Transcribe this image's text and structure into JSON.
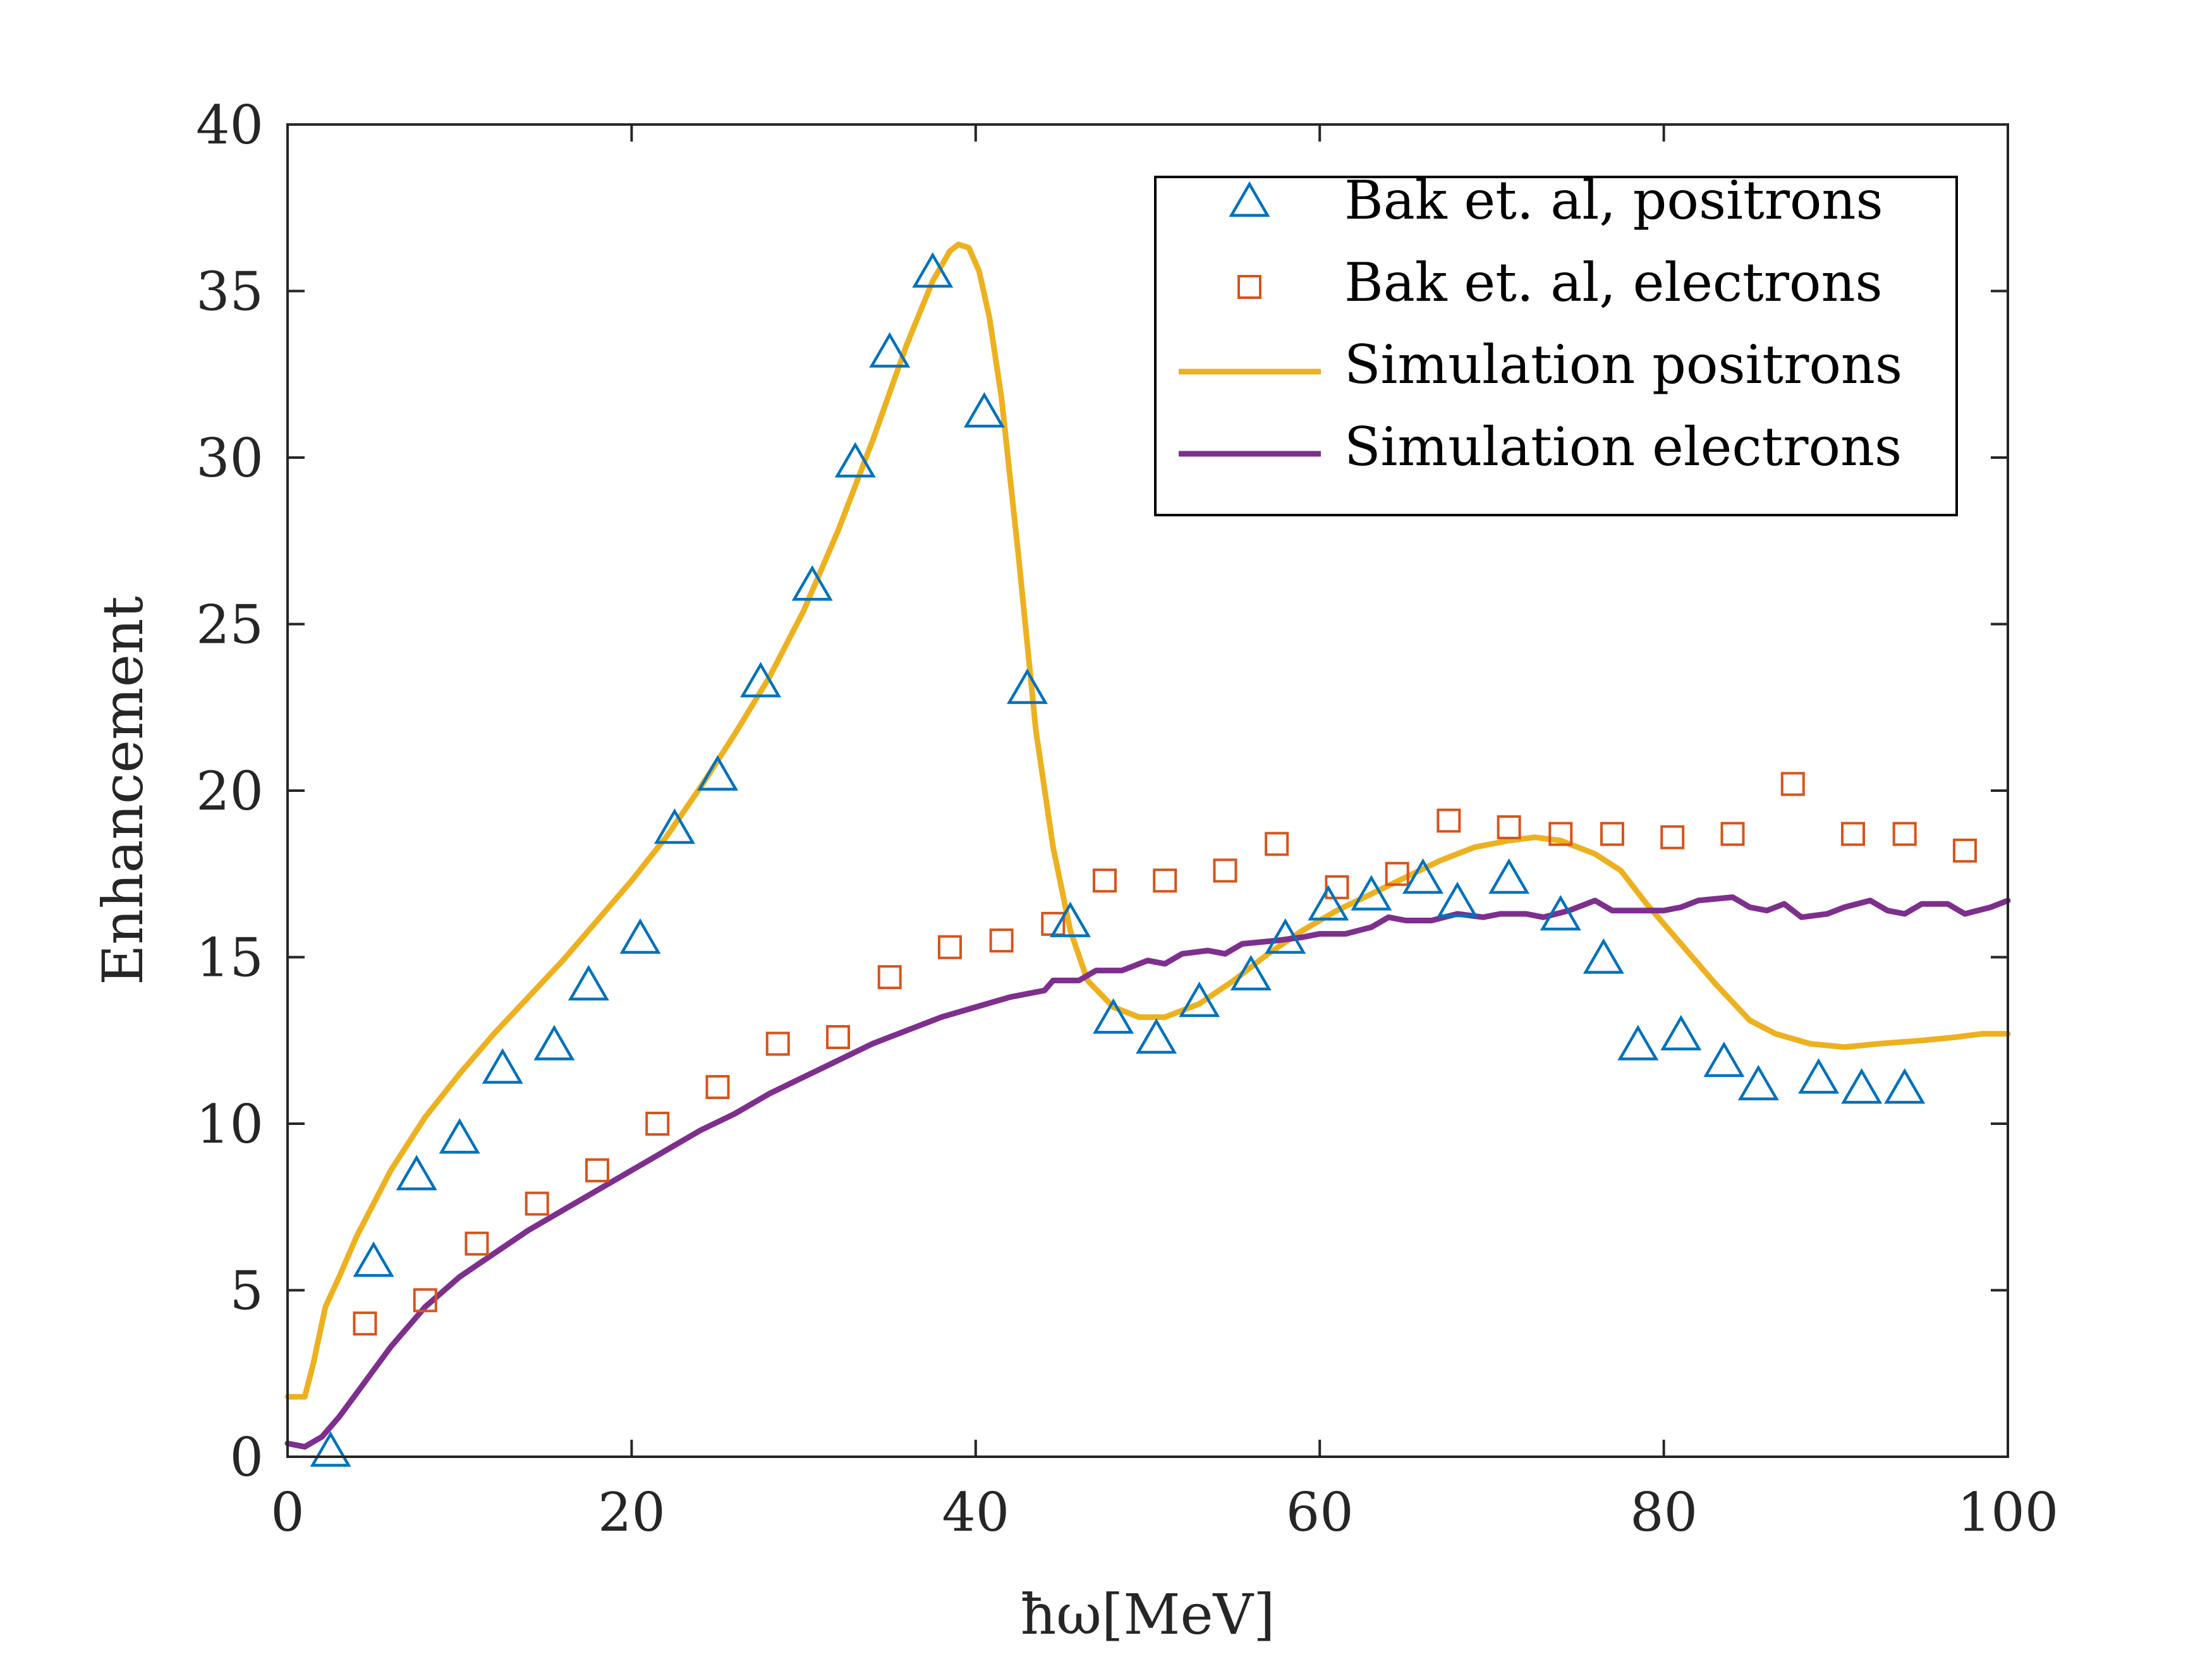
{
  "chart_data": {
    "type": "line",
    "title": "",
    "xlabel": "ħω[MeV]",
    "ylabel": "Enhancement",
    "xlim": [
      0,
      100
    ],
    "ylim": [
      0,
      40
    ],
    "xticks": [
      0,
      20,
      40,
      60,
      80,
      100
    ],
    "yticks": [
      0,
      5,
      10,
      15,
      20,
      25,
      30,
      35,
      40
    ],
    "grid": false,
    "legend_position": "top-right",
    "series": [
      {
        "name": "Bak et. al, positrons",
        "kind": "scatter",
        "marker": "triangle",
        "color": "#0072BD",
        "points": [
          [
            2.5,
            0.1
          ],
          [
            5,
            5.8
          ],
          [
            7.5,
            8.4
          ],
          [
            10,
            9.5
          ],
          [
            12.5,
            11.6
          ],
          [
            15.5,
            12.3
          ],
          [
            17.5,
            14.1
          ],
          [
            20.5,
            15.5
          ],
          [
            22.5,
            18.8
          ],
          [
            25,
            20.4
          ],
          [
            27.5,
            23.2
          ],
          [
            30.5,
            26.1
          ],
          [
            33,
            29.8
          ],
          [
            35,
            33.1
          ],
          [
            37.5,
            35.5
          ],
          [
            40.5,
            31.3
          ],
          [
            43,
            23
          ],
          [
            45.5,
            16
          ],
          [
            48,
            13.1
          ],
          [
            50.5,
            12.5
          ],
          [
            53,
            13.6
          ],
          [
            56,
            14.4
          ],
          [
            58,
            15.5
          ],
          [
            60.5,
            16.5
          ],
          [
            63,
            16.8
          ],
          [
            66,
            17.3
          ],
          [
            68,
            16.6
          ],
          [
            71,
            17.3
          ],
          [
            74,
            16.2
          ],
          [
            76.5,
            14.9
          ],
          [
            78.5,
            12.3
          ],
          [
            81,
            12.6
          ],
          [
            83.5,
            11.8
          ],
          [
            85.5,
            11.1
          ],
          [
            89,
            11.3
          ],
          [
            91.5,
            11
          ],
          [
            94,
            11
          ]
        ]
      },
      {
        "name": "Bak et. al, electrons",
        "kind": "scatter",
        "marker": "square",
        "color": "#D95319",
        "points": [
          [
            4.5,
            4
          ],
          [
            8,
            4.7
          ],
          [
            11,
            6.4
          ],
          [
            14.5,
            7.6
          ],
          [
            18,
            8.6
          ],
          [
            21.5,
            10
          ],
          [
            25,
            11.1
          ],
          [
            28.5,
            12.4
          ],
          [
            32,
            12.6
          ],
          [
            35,
            14.4
          ],
          [
            38.5,
            15.3
          ],
          [
            41.5,
            15.5
          ],
          [
            44.5,
            16
          ],
          [
            47.5,
            17.3
          ],
          [
            51,
            17.3
          ],
          [
            54.5,
            17.6
          ],
          [
            57.5,
            18.4
          ],
          [
            61,
            17.1
          ],
          [
            64.5,
            17.5
          ],
          [
            67.5,
            19.1
          ],
          [
            71,
            18.9
          ],
          [
            74,
            18.7
          ],
          [
            77,
            18.7
          ],
          [
            80.5,
            18.6
          ],
          [
            84,
            18.7
          ],
          [
            87.5,
            20.2
          ],
          [
            91,
            18.7
          ],
          [
            94,
            18.7
          ],
          [
            97.5,
            18.2
          ]
        ]
      },
      {
        "name": "Simulation positrons",
        "kind": "line",
        "color": "#EDB120",
        "points": [
          [
            0,
            1.8
          ],
          [
            1,
            1.8
          ],
          [
            1.5,
            2.8
          ],
          [
            2.2,
            4.5
          ],
          [
            3,
            5.4
          ],
          [
            4,
            6.6
          ],
          [
            6,
            8.6
          ],
          [
            8,
            10.2
          ],
          [
            10,
            11.5
          ],
          [
            12,
            12.7
          ],
          [
            14,
            13.8
          ],
          [
            16,
            14.9
          ],
          [
            18,
            16.1
          ],
          [
            20,
            17.3
          ],
          [
            22,
            18.6
          ],
          [
            24,
            20.1
          ],
          [
            26,
            21.7
          ],
          [
            28,
            23.4
          ],
          [
            30,
            25.4
          ],
          [
            32,
            27.8
          ],
          [
            34,
            30.5
          ],
          [
            36,
            33.4
          ],
          [
            37.5,
            35.3
          ],
          [
            38.5,
            36.2
          ],
          [
            39,
            36.4
          ],
          [
            39.6,
            36.3
          ],
          [
            40.2,
            35.6
          ],
          [
            40.8,
            34.2
          ],
          [
            41.5,
            31.8
          ],
          [
            42.5,
            27
          ],
          [
            43.5,
            21.8
          ],
          [
            44.5,
            18.3
          ],
          [
            45.5,
            15.8
          ],
          [
            46.5,
            14.3
          ],
          [
            48,
            13.5
          ],
          [
            49.5,
            13.2
          ],
          [
            51,
            13.2
          ],
          [
            53,
            13.6
          ],
          [
            55,
            14.3
          ],
          [
            57,
            15.1
          ],
          [
            59,
            15.8
          ],
          [
            61,
            16.4
          ],
          [
            63,
            16.9
          ],
          [
            65,
            17.4
          ],
          [
            67,
            17.9
          ],
          [
            69,
            18.3
          ],
          [
            71,
            18.5
          ],
          [
            72.5,
            18.6
          ],
          [
            74,
            18.5
          ],
          [
            76,
            18.1
          ],
          [
            77.5,
            17.6
          ],
          [
            79,
            16.6
          ],
          [
            81,
            15.4
          ],
          [
            83,
            14.2
          ],
          [
            85,
            13.1
          ],
          [
            86.5,
            12.7
          ],
          [
            88.5,
            12.4
          ],
          [
            90.5,
            12.3
          ],
          [
            92.5,
            12.4
          ],
          [
            95,
            12.5
          ],
          [
            97,
            12.6
          ],
          [
            98.5,
            12.7
          ],
          [
            100,
            12.7
          ]
        ]
      },
      {
        "name": "Simulation electrons",
        "kind": "line",
        "color": "#7E2F8E",
        "points": [
          [
            0,
            0.4
          ],
          [
            1,
            0.3
          ],
          [
            2,
            0.6
          ],
          [
            3,
            1.2
          ],
          [
            4,
            1.9
          ],
          [
            5,
            2.6
          ],
          [
            6,
            3.3
          ],
          [
            7,
            3.9
          ],
          [
            8,
            4.5
          ],
          [
            10,
            5.4
          ],
          [
            12,
            6.1
          ],
          [
            14,
            6.8
          ],
          [
            16,
            7.4
          ],
          [
            18,
            8.0
          ],
          [
            20,
            8.6
          ],
          [
            22,
            9.2
          ],
          [
            24,
            9.8
          ],
          [
            26,
            10.3
          ],
          [
            28,
            10.9
          ],
          [
            30,
            11.4
          ],
          [
            32,
            11.9
          ],
          [
            34,
            12.4
          ],
          [
            36,
            12.8
          ],
          [
            38,
            13.2
          ],
          [
            40,
            13.5
          ],
          [
            42,
            13.8
          ],
          [
            44,
            14.0
          ],
          [
            44.5,
            14.3
          ],
          [
            46,
            14.3
          ],
          [
            47,
            14.6
          ],
          [
            48.5,
            14.6
          ],
          [
            50,
            14.9
          ],
          [
            51,
            14.8
          ],
          [
            52,
            15.1
          ],
          [
            53.5,
            15.2
          ],
          [
            54.5,
            15.1
          ],
          [
            55.5,
            15.4
          ],
          [
            57.5,
            15.5
          ],
          [
            59,
            15.6
          ],
          [
            60,
            15.7
          ],
          [
            61.5,
            15.7
          ],
          [
            63,
            15.9
          ],
          [
            64,
            16.2
          ],
          [
            65,
            16.1
          ],
          [
            66.5,
            16.1
          ],
          [
            68,
            16.3
          ],
          [
            69.5,
            16.2
          ],
          [
            70.5,
            16.3
          ],
          [
            72,
            16.3
          ],
          [
            73,
            16.2
          ],
          [
            74.5,
            16.4
          ],
          [
            76,
            16.7
          ],
          [
            77,
            16.4
          ],
          [
            78.5,
            16.4
          ],
          [
            80,
            16.4
          ],
          [
            81,
            16.5
          ],
          [
            82,
            16.7
          ],
          [
            84,
            16.8
          ],
          [
            85,
            16.5
          ],
          [
            86,
            16.4
          ],
          [
            87,
            16.6
          ],
          [
            88,
            16.2
          ],
          [
            89.5,
            16.3
          ],
          [
            90.5,
            16.5
          ],
          [
            92,
            16.7
          ],
          [
            93,
            16.4
          ],
          [
            94,
            16.3
          ],
          [
            95,
            16.6
          ],
          [
            96.5,
            16.6
          ],
          [
            97.5,
            16.3
          ],
          [
            99,
            16.5
          ],
          [
            100,
            16.7
          ]
        ]
      }
    ]
  }
}
